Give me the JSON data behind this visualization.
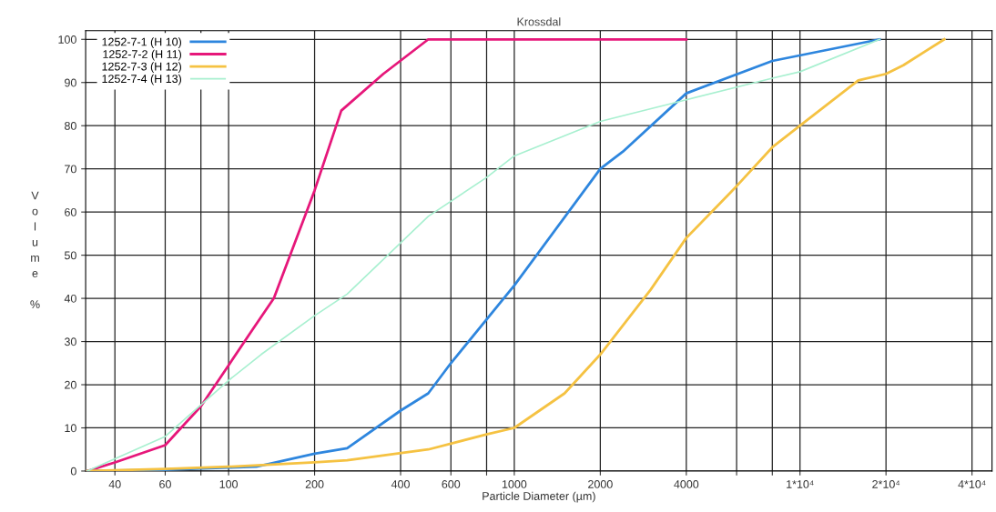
{
  "chart_data": {
    "type": "line",
    "title": "Krossdal",
    "xlabel": "Particle Diameter (µm)",
    "ylabel": "Volume %",
    "log": "x",
    "grid": true,
    "legend": "top left",
    "marker": "none",
    "line_style": "solid",
    "xlim": [
      31.6,
      47000
    ],
    "ylim": [
      0,
      102
    ],
    "xticks": [
      40,
      60,
      {
        "value": 80,
        "label": null
      },
      100,
      200,
      400,
      600,
      {
        "value": 800,
        "label": null
      },
      1000,
      2000,
      4000,
      {
        "value": 6000,
        "label": null
      },
      {
        "value": 8000,
        "label": null
      },
      {
        "value": 10000,
        "label": "1*10⁴"
      },
      {
        "value": 20000,
        "label": "2*10⁴"
      },
      {
        "value": 40000,
        "label": "4*10⁴"
      }
    ],
    "yticks": [
      0,
      10,
      20,
      30,
      40,
      50,
      60,
      70,
      80,
      90,
      100
    ],
    "series": [
      {
        "name": "1252-7-1 (H 10)",
        "color": "#2e86de",
        "x": [
          32,
          60,
          100,
          125,
          200,
          260,
          400,
          500,
          600,
          1000,
          2000,
          2400,
          4000,
          8000,
          19000
        ],
        "values": [
          0,
          0.3,
          0.8,
          1,
          4,
          5.3,
          14,
          18,
          25,
          43,
          70,
          74,
          87.5,
          95,
          100
        ]
      },
      {
        "name": "1252-7-2 (H 11)",
        "color": "#e6177a",
        "x": [
          32,
          40,
          60,
          80,
          100,
          122,
          144,
          200,
          248,
          348,
          500,
          4000
        ],
        "values": [
          0,
          2,
          6,
          15,
          24.5,
          33,
          40,
          65,
          83.5,
          92,
          100,
          100
        ]
      },
      {
        "name": "1252-7-3 (H 12)",
        "color": "#f5c242",
        "x": [
          32,
          60,
          100,
          200,
          260,
          500,
          800,
          1000,
          1500,
          2000,
          3000,
          4000,
          6000,
          8000,
          10000,
          16000,
          20000,
          23000,
          32000
        ],
        "values": [
          0,
          0.5,
          1,
          2,
          2.5,
          5,
          8.5,
          10,
          18,
          27,
          42,
          54,
          66,
          75,
          80,
          90.5,
          92,
          94,
          100
        ]
      },
      {
        "name": "1252-7-4 (H 13)",
        "color": "#a8f0d0",
        "x": [
          32,
          60,
          100,
          130,
          200,
          260,
          500,
          800,
          1000,
          2000,
          4000,
          8000,
          10000,
          19000
        ],
        "values": [
          0,
          8,
          21,
          27,
          36,
          41,
          59,
          68,
          73,
          81,
          86,
          91,
          92.5,
          100
        ]
      }
    ]
  }
}
